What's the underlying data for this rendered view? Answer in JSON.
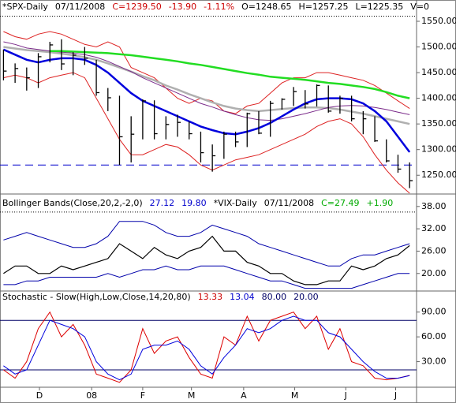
{
  "xlim": [
    -0.3,
    35.6
  ],
  "chart_data": [
    {
      "type": "ohlc",
      "header": [
        {
          "text": "*SPX-Daily",
          "color": "#000000"
        },
        {
          "text": "07/11/2008",
          "color": "#000000"
        },
        {
          "text": "C=1239.50",
          "color": "#cc0000"
        },
        {
          "text": "-13.90",
          "color": "#cc0000"
        },
        {
          "text": "-1.11%",
          "color": "#cc0000"
        },
        {
          "text": "O=1248.65",
          "color": "#000000"
        },
        {
          "text": "H=1257.25",
          "color": "#000000"
        },
        {
          "text": "L=1225.35",
          "color": "#000000"
        },
        {
          "text": "V=0",
          "color": "#000000"
        }
      ],
      "ylim": [
        1215,
        1570
      ],
      "yticks": [
        {
          "value": 1250,
          "label": "1250.00"
        },
        {
          "value": 1300,
          "label": "1300.00"
        },
        {
          "value": 1350,
          "label": "1350.00"
        },
        {
          "value": 1400,
          "label": "1400.00"
        },
        {
          "value": 1450,
          "label": "1450.00"
        },
        {
          "value": 1500,
          "label": "1500.00"
        },
        {
          "value": 1550,
          "label": "1550.00"
        }
      ],
      "high": [
        1495,
        1468,
        1460,
        1488,
        1510,
        1515,
        1490,
        1500,
        1475,
        1420,
        1405,
        1365,
        1398,
        1396,
        1365,
        1368,
        1355,
        1335,
        1310,
        1335,
        1335,
        1372,
        1375,
        1395,
        1400,
        1422,
        1416,
        1427,
        1425,
        1405,
        1405,
        1375,
        1365,
        1320,
        1290,
        1275
      ],
      "low": [
        1435,
        1430,
        1415,
        1420,
        1470,
        1455,
        1445,
        1465,
        1405,
        1375,
        1270,
        1275,
        1320,
        1320,
        1320,
        1325,
        1320,
        1275,
        1257,
        1282,
        1305,
        1305,
        1330,
        1325,
        1378,
        1385,
        1380,
        1384,
        1372,
        1370,
        1355,
        1330,
        1315,
        1275,
        1255,
        1225
      ],
      "close": [
        1453,
        1458,
        1440,
        1481,
        1504,
        1467,
        1484,
        1478,
        1411,
        1401,
        1325,
        1330,
        1395,
        1331,
        1349,
        1353,
        1331,
        1294,
        1288,
        1330,
        1315,
        1370,
        1332,
        1390,
        1398,
        1413,
        1389,
        1425,
        1375,
        1400,
        1360,
        1360,
        1317,
        1278,
        1262,
        1239.5
      ],
      "series": [
        {
          "color": "#dd2222",
          "width": 1,
          "values": [
            1530,
            1520,
            1515,
            1525,
            1530,
            1525,
            1515,
            1505,
            1500,
            1510,
            1500,
            1460,
            1450,
            1440,
            1420,
            1400,
            1390,
            1400,
            1395,
            1375,
            1370,
            1385,
            1390,
            1410,
            1430,
            1440,
            1440,
            1450,
            1450,
            1445,
            1440,
            1435,
            1425,
            1410,
            1395,
            1380
          ]
        },
        {
          "color": "#dd2222",
          "width": 1,
          "values": [
            1440,
            1445,
            1440,
            1430,
            1440,
            1445,
            1450,
            1440,
            1400,
            1360,
            1320,
            1290,
            1290,
            1300,
            1310,
            1305,
            1290,
            1270,
            1260,
            1270,
            1280,
            1285,
            1290,
            1300,
            1310,
            1320,
            1330,
            1345,
            1355,
            1360,
            1350,
            1325,
            1290,
            1260,
            1235,
            1215
          ]
        },
        {
          "color": "#b0b0b0",
          "width": 2.5,
          "values": [
            1500,
            1497,
            1494,
            1492,
            1490,
            1487,
            1484,
            1480,
            1475,
            1468,
            1460,
            1452,
            1443,
            1435,
            1425,
            1417,
            1408,
            1400,
            1392,
            1385,
            1380,
            1377,
            1375,
            1377,
            1379,
            1381,
            1382,
            1382,
            1381,
            1378,
            1374,
            1370,
            1365,
            1360,
            1355,
            1350
          ]
        },
        {
          "color": "#7a2a8a",
          "width": 1,
          "values": [
            1510,
            1505,
            1498,
            1495,
            1492,
            1490,
            1488,
            1485,
            1480,
            1472,
            1462,
            1452,
            1440,
            1430,
            1420,
            1410,
            1400,
            1390,
            1383,
            1375,
            1368,
            1362,
            1358,
            1357,
            1360,
            1365,
            1370,
            1376,
            1382,
            1385,
            1386,
            1385,
            1382,
            1378,
            1373,
            1368
          ]
        },
        {
          "color": "#22dd22",
          "width": 2.5,
          "values": [
            null,
            null,
            null,
            null,
            1492,
            1492,
            1491,
            1490,
            1489,
            1488,
            1486,
            1484,
            1481,
            1478,
            1475,
            1472,
            1468,
            1465,
            1461,
            1457,
            1453,
            1449,
            1446,
            1442,
            1440,
            1438,
            1436,
            1433,
            1430,
            1428,
            1425,
            1422,
            1418,
            1412,
            1405,
            1400
          ]
        },
        {
          "color": "#0000dd",
          "width": 2.5,
          "values": [
            1495,
            1485,
            1475,
            1470,
            1475,
            1478,
            1478,
            1475,
            1465,
            1450,
            1430,
            1410,
            1395,
            1385,
            1375,
            1365,
            1355,
            1345,
            1338,
            1332,
            1330,
            1335,
            1342,
            1352,
            1365,
            1378,
            1390,
            1398,
            1400,
            1400,
            1398,
            1390,
            1375,
            1355,
            1325,
            1295
          ]
        }
      ],
      "hlines": [
        {
          "value": 1560,
          "color": "#000000",
          "dash": "1,2"
        },
        {
          "value": 1270,
          "color": "#0000cc",
          "dash": "10,6"
        }
      ]
    },
    {
      "type": "line",
      "header": [
        {
          "text": "Bollinger Bands(Close,20,2,-2,0)",
          "color": "#000000"
        },
        {
          "text": "27.12",
          "color": "#0000cc"
        },
        {
          "text": "19.80",
          "color": "#0000cc"
        },
        {
          "text": "*VIX-Daily",
          "color": "#000000"
        },
        {
          "text": "07/11/2008",
          "color": "#000000"
        },
        {
          "text": "C=27.49",
          "color": "#00aa00"
        },
        {
          "text": "+1.90",
          "color": "#00aa00"
        }
      ],
      "ylim": [
        15.5,
        40.5
      ],
      "yticks": [
        {
          "value": 20,
          "label": "20.00"
        },
        {
          "value": 26,
          "label": "26.00"
        },
        {
          "value": 32,
          "label": "32.00"
        },
        {
          "value": 38,
          "label": "38.00"
        }
      ],
      "series": [
        {
          "color": "#0000aa",
          "width": 1,
          "values": [
            29,
            30,
            31,
            30,
            29,
            28,
            27,
            27,
            28,
            30,
            34,
            34,
            34,
            33,
            31,
            30,
            30,
            31,
            33,
            32,
            31,
            30,
            28,
            27,
            26,
            25,
            24,
            23,
            22,
            22,
            24,
            25,
            25,
            26,
            27,
            28
          ]
        },
        {
          "color": "#0000aa",
          "width": 1,
          "values": [
            17,
            17,
            18,
            18,
            19,
            19,
            19,
            19,
            19,
            20,
            19,
            20,
            21,
            21,
            22,
            21,
            21,
            22,
            22,
            22,
            21,
            20,
            19,
            18,
            18,
            17,
            16,
            16,
            16,
            16,
            16,
            17,
            18,
            19,
            20,
            20
          ]
        },
        {
          "color": "#000000",
          "width": 1.2,
          "values": [
            20,
            22,
            22,
            20,
            20,
            22,
            21,
            22,
            23,
            24,
            28,
            26,
            24,
            27,
            25,
            24,
            26,
            27,
            30,
            26,
            26,
            23,
            22,
            20,
            20,
            18,
            17,
            17,
            18,
            18,
            22,
            21,
            22,
            24,
            25,
            27.49
          ]
        }
      ],
      "hlines": [
        {
          "value": 36.5,
          "color": "#000000",
          "dash": "1,2"
        }
      ]
    },
    {
      "type": "line",
      "header": [
        {
          "text": "Stochastic - Slow(High,Low,Close,14,20,80)",
          "color": "#000000"
        },
        {
          "text": "13.33",
          "color": "#cc0000"
        },
        {
          "text": "13.04",
          "color": "#0000cc"
        },
        {
          "text": "80.00",
          "color": "#000066"
        },
        {
          "text": "20.00",
          "color": "#000066"
        }
      ],
      "ylim": [
        0,
        105
      ],
      "yticks": [
        {
          "value": 30,
          "label": "30.00"
        },
        {
          "value": 60,
          "label": "60.00"
        },
        {
          "value": 90,
          "label": "90.00"
        }
      ],
      "series": [
        {
          "color": "#dd0000",
          "width": 1,
          "values": [
            20,
            10,
            30,
            70,
            90,
            60,
            75,
            50,
            15,
            10,
            5,
            20,
            70,
            40,
            55,
            60,
            35,
            15,
            10,
            60,
            50,
            85,
            55,
            80,
            85,
            90,
            70,
            85,
            45,
            70,
            30,
            25,
            10,
            8,
            10,
            13.33
          ]
        },
        {
          "color": "#0000dd",
          "width": 1,
          "values": [
            25,
            15,
            20,
            50,
            80,
            75,
            70,
            60,
            30,
            15,
            8,
            15,
            45,
            50,
            50,
            55,
            45,
            25,
            15,
            35,
            50,
            70,
            65,
            70,
            80,
            85,
            80,
            80,
            65,
            60,
            45,
            30,
            18,
            10,
            10,
            13.04
          ]
        }
      ],
      "hlines": [
        {
          "value": 80,
          "color": "#000066",
          "dash": "none"
        },
        {
          "value": 20,
          "color": "#000066",
          "dash": "none"
        }
      ],
      "xticks": [
        {
          "value": 3.1,
          "label": "D"
        },
        {
          "value": 7.6,
          "label": "08"
        },
        {
          "value": 12.0,
          "label": "F"
        },
        {
          "value": 16.2,
          "label": "M"
        },
        {
          "value": 20.7,
          "label": "A"
        },
        {
          "value": 25.1,
          "label": "M"
        },
        {
          "value": 29.5,
          "label": "J"
        },
        {
          "value": 33.8,
          "label": "J"
        }
      ]
    }
  ]
}
